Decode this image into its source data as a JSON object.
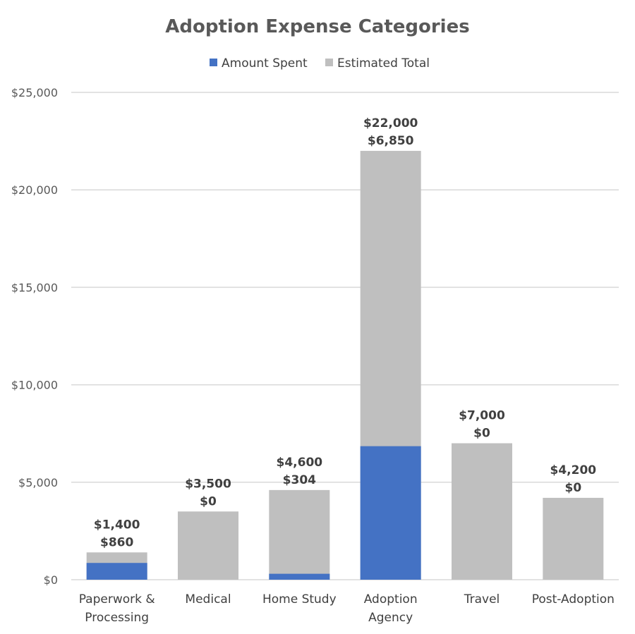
{
  "chart_data": {
    "type": "bar",
    "title": "Adoption Expense Categories",
    "categories": [
      [
        "Paperwork &",
        "Processing"
      ],
      [
        "Medical"
      ],
      [
        "Home Study"
      ],
      [
        "Adoption",
        "Agency"
      ],
      [
        "Travel"
      ],
      [
        "Post-Adoption"
      ]
    ],
    "series": [
      {
        "name": "Amount Spent",
        "color": "#4472c4",
        "values": [
          860,
          0,
          304,
          6850,
          0,
          0
        ],
        "labels": [
          "$860",
          "$0",
          "$304",
          "$6,850",
          "$0",
          "$0"
        ]
      },
      {
        "name": "Estimated Total",
        "color": "#bfbfbf",
        "values": [
          1400,
          3500,
          4600,
          22000,
          7000,
          4200
        ],
        "labels": [
          "$1,400",
          "$3,500",
          "$4,600",
          "$22,000",
          "$7,000",
          "$4,200"
        ]
      }
    ],
    "ylim": [
      0,
      25000
    ],
    "yticks": [
      0,
      5000,
      10000,
      15000,
      20000,
      25000
    ],
    "ytick_labels": [
      "$0",
      "$5,000",
      "$10,000",
      "$15,000",
      "$20,000",
      "$25,000"
    ],
    "xlabel": "",
    "ylabel": "",
    "grid": true,
    "legend_position": "top",
    "overlap": true
  }
}
